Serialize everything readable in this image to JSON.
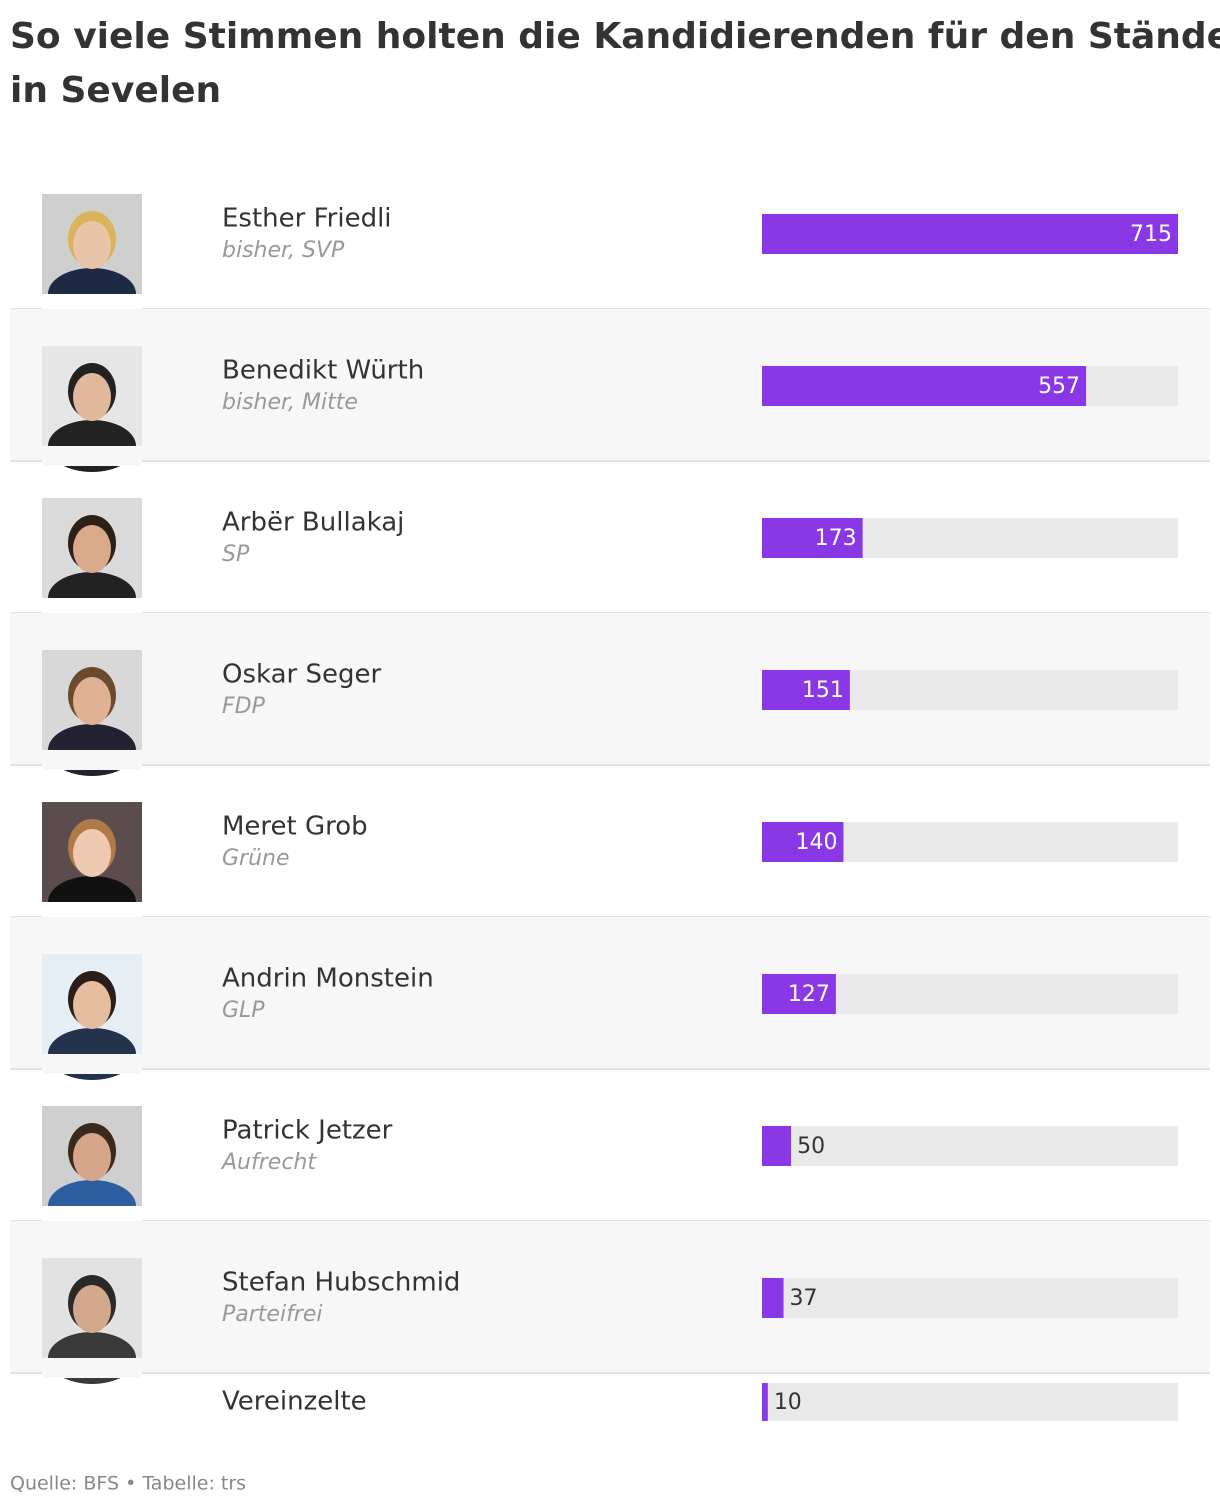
{
  "chart_data": {
    "type": "bar",
    "title": "So viele Stimmen holten die Kandidierenden für den Ständerat in Sevelen",
    "rows": [
      {
        "name": "Esther Friedli",
        "note": "bisher, SVP",
        "votes": 715
      },
      {
        "name": "Benedikt Würth",
        "note": "bisher, Mitte",
        "votes": 557
      },
      {
        "name": "Arbër Bullakaj",
        "note": "SP",
        "votes": 173
      },
      {
        "name": "Oskar Seger",
        "note": "FDP",
        "votes": 151
      },
      {
        "name": "Meret Grob",
        "note": "Grüne",
        "votes": 140
      },
      {
        "name": "Andrin Monstein",
        "note": "GLP",
        "votes": 127
      },
      {
        "name": "Patrick Jetzer",
        "note": "Aufrecht",
        "votes": 50
      },
      {
        "name": "Stefan Hubschmid",
        "note": "Parteifrei",
        "votes": 37
      },
      {
        "name": "Vereinzelte",
        "votes": 10
      }
    ],
    "color": "#8a37e6",
    "source": "Quelle: BFS • Tabelle: trs"
  }
}
